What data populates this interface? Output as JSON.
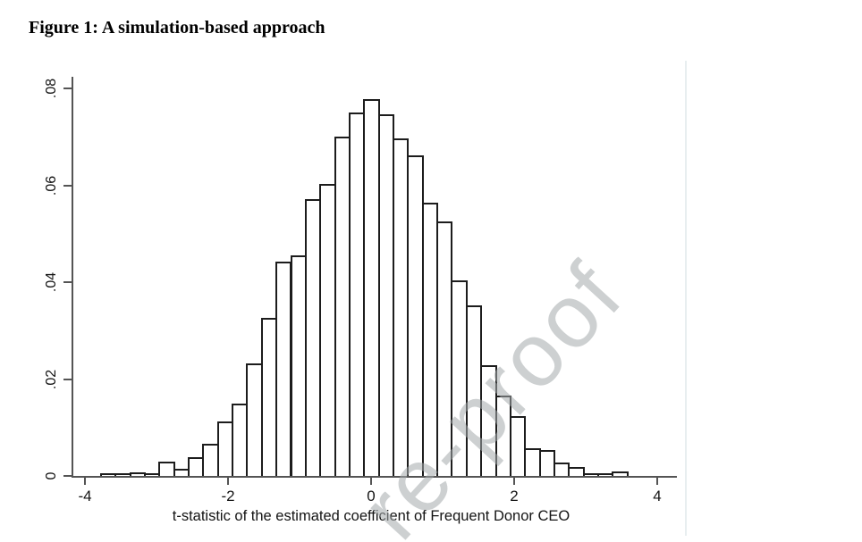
{
  "page": {
    "title": "Figure 1: A simulation-based approach",
    "watermark": "re-proof"
  },
  "chart_data": {
    "type": "bar",
    "subtype": "histogram",
    "title": "Figure 1: A simulation-based approach",
    "xlabel": "t-statistic of the estimated coefficient of Frequent Donor CEO",
    "ylabel": "",
    "grid": false,
    "legend_position": "none",
    "bar_fill_color": "#ffffff",
    "bar_edge_color": "#1c1c1c",
    "axis_color": "#545454",
    "x_tick_labels": [
      "-4",
      "-2",
      "0",
      "2",
      "4"
    ],
    "x_tick_values": [
      -4,
      -2,
      0,
      2,
      4
    ],
    "y_tick_labels": [
      "0",
      ".02",
      ".04",
      ".06",
      ".08"
    ],
    "y_tick_values": [
      0,
      0.02,
      0.04,
      0.06,
      0.08
    ],
    "xlim": [
      -4.18,
      4.26
    ],
    "ylim": [
      0,
      0.0824
    ],
    "bin_start": -3.79,
    "bin_width": 0.2045,
    "heights": [
      0.0004,
      0.0006,
      0.0007,
      0.0006,
      0.0029,
      0.0015,
      0.0039,
      0.0067,
      0.0112,
      0.015,
      0.0232,
      0.0326,
      0.0443,
      0.0455,
      0.0571,
      0.0602,
      0.0701,
      0.075,
      0.0778,
      0.0747,
      0.0697,
      0.0661,
      0.0565,
      0.0525,
      0.0403,
      0.0352,
      0.0229,
      0.0166,
      0.0124,
      0.0058,
      0.0053,
      0.0028,
      0.0018,
      0.0004,
      0.0004,
      0.001
    ]
  }
}
